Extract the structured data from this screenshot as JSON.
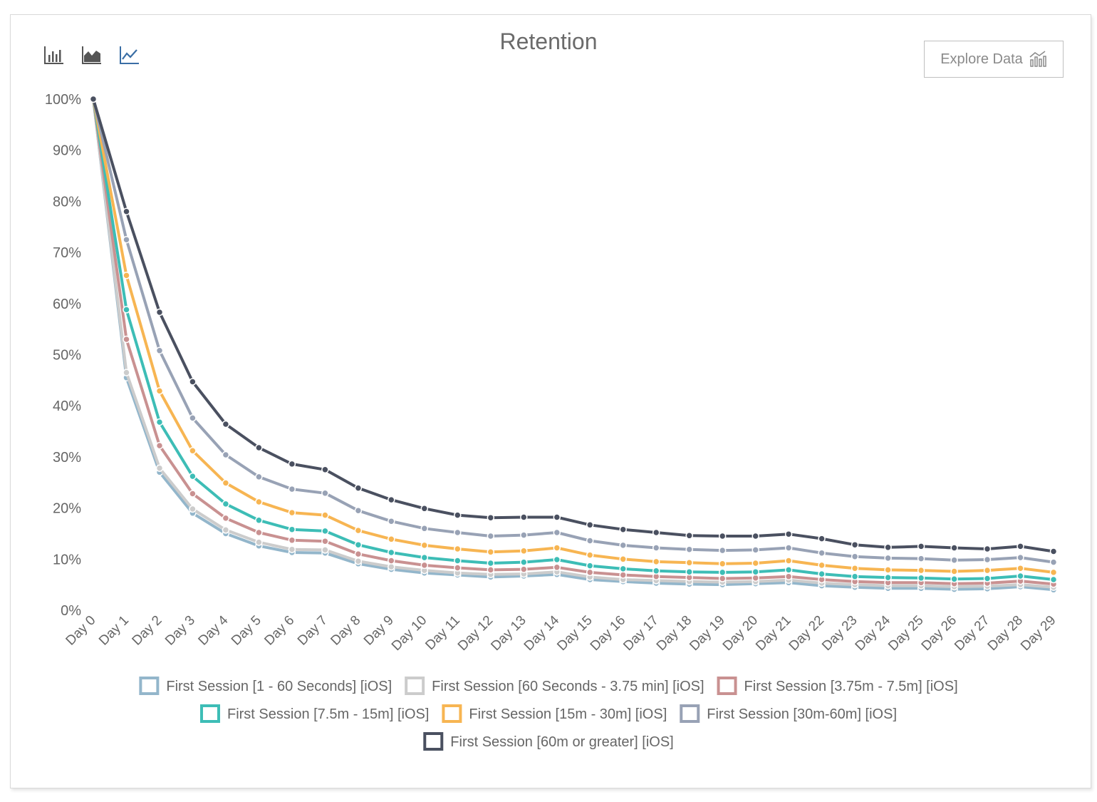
{
  "header": {
    "explore_label": "Explore Data"
  },
  "toolbar": {
    "icons": [
      "bar-chart-icon",
      "area-chart-icon",
      "line-chart-icon"
    ],
    "active": "line-chart-icon",
    "active_color": "#3a6ea5",
    "inactive_color": "#555555"
  },
  "chart_data": {
    "type": "line",
    "title": "Retention",
    "xlabel": "",
    "ylabel": "",
    "ylim": [
      0,
      100
    ],
    "y_ticks": [
      "0%",
      "10%",
      "20%",
      "30%",
      "40%",
      "50%",
      "60%",
      "70%",
      "80%",
      "90%",
      "100%"
    ],
    "grid": false,
    "legend_position": "bottom",
    "categories": [
      "Day 0",
      "Day 1",
      "Day 2",
      "Day 3",
      "Day 4",
      "Day 5",
      "Day 6",
      "Day 7",
      "Day 8",
      "Day 9",
      "Day 10",
      "Day 11",
      "Day 12",
      "Day 13",
      "Day 14",
      "Day 15",
      "Day 16",
      "Day 17",
      "Day 18",
      "Day 19",
      "Day 20",
      "Day 21",
      "Day 22",
      "Day 23",
      "Day 24",
      "Day 25",
      "Day 26",
      "Day 27",
      "Day 28",
      "Day 29"
    ],
    "series": [
      {
        "name": "First Session [1 - 60 Seconds] [iOS]",
        "color": "#93b6cb",
        "values": [
          100,
          45.5,
          27.0,
          19.0,
          15.0,
          12.6,
          11.3,
          11.2,
          9.1,
          8.0,
          7.3,
          6.9,
          6.5,
          6.7,
          7.0,
          6.0,
          5.6,
          5.3,
          5.1,
          5.0,
          5.2,
          5.4,
          4.8,
          4.5,
          4.3,
          4.3,
          4.1,
          4.2,
          4.6,
          4.0
        ]
      },
      {
        "name": "First Session [60 Seconds - 3.75 min] [iOS]",
        "color": "#cccccc",
        "values": [
          100,
          46.5,
          27.8,
          19.8,
          15.7,
          13.3,
          11.9,
          11.8,
          9.6,
          8.5,
          7.8,
          7.3,
          7.0,
          7.1,
          7.5,
          6.5,
          6.0,
          5.8,
          5.6,
          5.5,
          5.6,
          5.9,
          5.3,
          5.0,
          4.8,
          4.8,
          4.6,
          4.7,
          5.0,
          4.5
        ]
      },
      {
        "name": "First Session [3.75m - 7.5m] [iOS]",
        "color": "#c99191",
        "values": [
          100,
          53.0,
          32.2,
          22.8,
          18.0,
          15.2,
          13.7,
          13.5,
          11.0,
          9.7,
          8.8,
          8.3,
          7.9,
          8.0,
          8.4,
          7.4,
          6.9,
          6.6,
          6.4,
          6.2,
          6.3,
          6.6,
          6.0,
          5.6,
          5.4,
          5.4,
          5.2,
          5.3,
          5.7,
          5.1
        ]
      },
      {
        "name": "First Session [7.5m - 15m] [iOS]",
        "color": "#3dbdb6",
        "values": [
          100,
          58.8,
          36.8,
          26.2,
          20.8,
          17.6,
          15.8,
          15.5,
          12.8,
          11.3,
          10.3,
          9.7,
          9.2,
          9.4,
          9.9,
          8.7,
          8.1,
          7.7,
          7.5,
          7.4,
          7.5,
          7.9,
          7.1,
          6.6,
          6.4,
          6.3,
          6.1,
          6.2,
          6.7,
          6.0
        ]
      },
      {
        "name": "First Session [15m - 30m] [iOS]",
        "color": "#f7b552",
        "values": [
          100,
          65.5,
          42.9,
          31.2,
          24.9,
          21.2,
          19.1,
          18.6,
          15.6,
          13.9,
          12.7,
          12.0,
          11.4,
          11.6,
          12.2,
          10.8,
          10.0,
          9.5,
          9.3,
          9.1,
          9.2,
          9.7,
          8.8,
          8.2,
          7.9,
          7.8,
          7.6,
          7.8,
          8.2,
          7.4
        ]
      },
      {
        "name": "First Session [30m-60m] [iOS]",
        "color": "#98a2b5",
        "values": [
          100,
          72.5,
          50.8,
          37.6,
          30.4,
          26.1,
          23.7,
          22.9,
          19.5,
          17.4,
          16.0,
          15.2,
          14.5,
          14.7,
          15.2,
          13.6,
          12.7,
          12.2,
          11.9,
          11.7,
          11.8,
          12.2,
          11.2,
          10.5,
          10.2,
          10.1,
          9.8,
          9.9,
          10.3,
          9.4
        ]
      },
      {
        "name": "First Session [60m or greater] [iOS]",
        "color": "#4a5060",
        "values": [
          100,
          78.0,
          58.3,
          44.7,
          36.4,
          31.8,
          28.6,
          27.5,
          23.9,
          21.6,
          19.9,
          18.6,
          18.1,
          18.2,
          18.2,
          16.7,
          15.8,
          15.2,
          14.6,
          14.5,
          14.5,
          14.9,
          14.0,
          12.8,
          12.3,
          12.5,
          12.2,
          12.0,
          12.5,
          11.5
        ]
      }
    ]
  }
}
